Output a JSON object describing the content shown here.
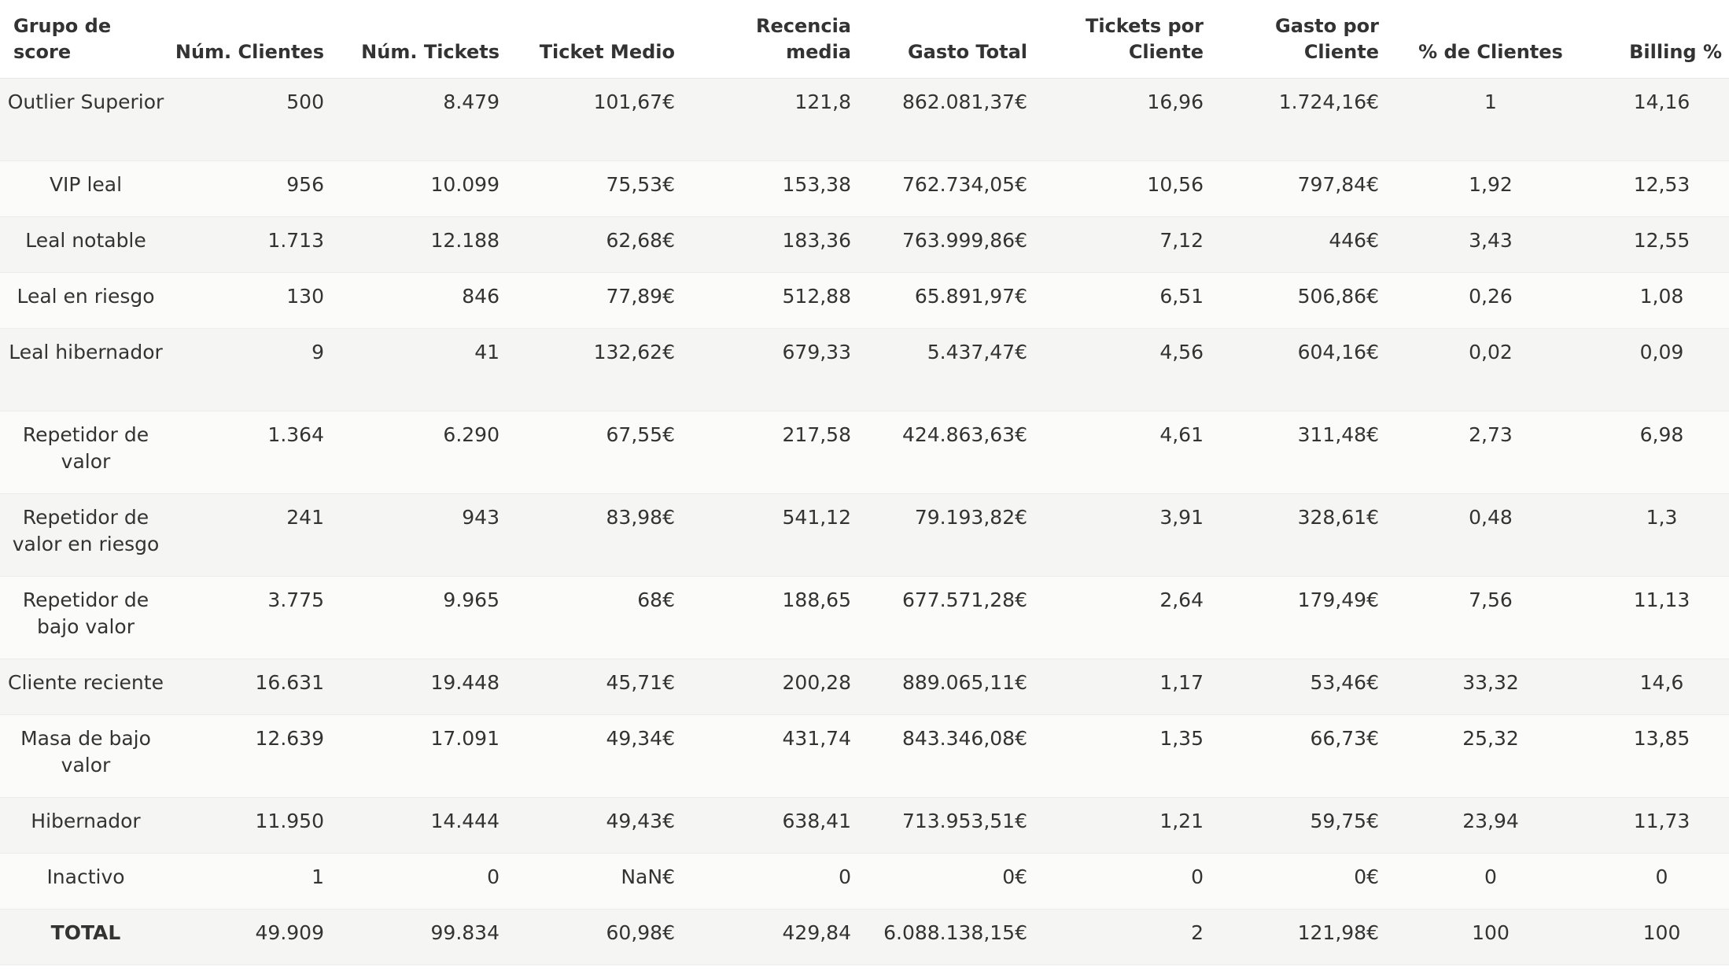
{
  "table": {
    "headers": [
      "Grupo de score",
      "Núm. Clientes",
      "Núm. Tickets",
      "Ticket Medio",
      "Recencia media",
      "Gasto Total",
      "Tickets por Cliente",
      "Gasto por Cliente",
      "% de Clientes",
      "Billing %"
    ],
    "rows": [
      [
        "Outlier Superior",
        "500",
        "8.479",
        "101,67€",
        "121,8",
        "862.081,37€",
        "16,96",
        "1.724,16€",
        "1",
        "14,16"
      ],
      [
        "VIP leal",
        "956",
        "10.099",
        "75,53€",
        "153,38",
        "762.734,05€",
        "10,56",
        "797,84€",
        "1,92",
        "12,53"
      ],
      [
        "Leal notable",
        "1.713",
        "12.188",
        "62,68€",
        "183,36",
        "763.999,86€",
        "7,12",
        "446€",
        "3,43",
        "12,55"
      ],
      [
        "Leal en riesgo",
        "130",
        "846",
        "77,89€",
        "512,88",
        "65.891,97€",
        "6,51",
        "506,86€",
        "0,26",
        "1,08"
      ],
      [
        "Leal hibernador",
        "9",
        "41",
        "132,62€",
        "679,33",
        "5.437,47€",
        "4,56",
        "604,16€",
        "0,02",
        "0,09"
      ],
      [
        "Repetidor de valor",
        "1.364",
        "6.290",
        "67,55€",
        "217,58",
        "424.863,63€",
        "4,61",
        "311,48€",
        "2,73",
        "6,98"
      ],
      [
        "Repetidor de valor en riesgo",
        "241",
        "943",
        "83,98€",
        "541,12",
        "79.193,82€",
        "3,91",
        "328,61€",
        "0,48",
        "1,3"
      ],
      [
        "Repetidor de bajo valor",
        "3.775",
        "9.965",
        "68€",
        "188,65",
        "677.571,28€",
        "2,64",
        "179,49€",
        "7,56",
        "11,13"
      ],
      [
        "Cliente reciente",
        "16.631",
        "19.448",
        "45,71€",
        "200,28",
        "889.065,11€",
        "1,17",
        "53,46€",
        "33,32",
        "14,6"
      ],
      [
        "Masa de bajo valor",
        "12.639",
        "17.091",
        "49,34€",
        "431,74",
        "843.346,08€",
        "1,35",
        "66,73€",
        "25,32",
        "13,85"
      ],
      [
        "Hibernador",
        "11.950",
        "14.444",
        "49,43€",
        "638,41",
        "713.953,51€",
        "1,21",
        "59,75€",
        "23,94",
        "11,73"
      ],
      [
        "Inactivo",
        "1",
        "0",
        "NaN€",
        "0",
        "0€",
        "0",
        "0€",
        "0",
        "0"
      ],
      [
        "TOTAL",
        "49.909",
        "99.834",
        "60,98€",
        "429,84",
        "6.088.138,15€",
        "2",
        "121,98€",
        "100",
        "100"
      ]
    ]
  }
}
